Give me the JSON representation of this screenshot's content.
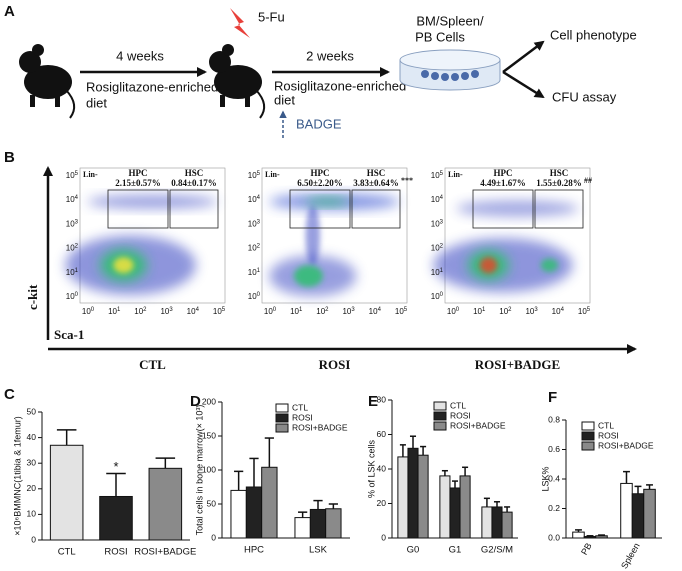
{
  "diagram": {
    "label": "A",
    "treatment": "5-Fu",
    "period_1": "4 weeks",
    "diet_1": [
      "Rosiglitazone-enriched",
      "diet"
    ],
    "period_2": "2 weeks",
    "diet_2": [
      "Rosiglitazone-enriched",
      "diet"
    ],
    "inhibitor": "BADGE",
    "cells": [
      "BM/Spleen/",
      "PB Cells"
    ],
    "outcomes": [
      "Cell phenotype",
      "CFU assay"
    ]
  },
  "flow": {
    "label": "B",
    "y_axis": "c-kit",
    "x_axis": "Sca-1",
    "gate_parent": "Lin-",
    "tick_base": "10",
    "tick_exponents": [
      0,
      1,
      2,
      3,
      4,
      5
    ],
    "plots": [
      {
        "name": "CTL",
        "gates": [
          {
            "name": "HPC",
            "value": "2.15±0.57%"
          },
          {
            "name": "HSC",
            "value": "0.84±0.17%"
          }
        ]
      },
      {
        "name": "ROSI",
        "gates": [
          {
            "name": "HPC",
            "value": "6.50±2.20%"
          },
          {
            "name": "HSC",
            "value": "3.83±0.64%",
            "mark": "***"
          }
        ]
      },
      {
        "name": "ROSI+BADGE",
        "gates": [
          {
            "name": "HPC",
            "value": "4.49±1.67%"
          },
          {
            "name": "HSC",
            "value": "1.55±0.28%",
            "mark": "##"
          }
        ]
      }
    ]
  },
  "chart_data": [
    {
      "type": "bar",
      "label": "C",
      "ylabel": "×10⁶BMMNC(1tibia & 1femur)",
      "categories": [
        "CTL",
        "ROSI",
        "ROSI+BADGE"
      ],
      "values": [
        37,
        17,
        28
      ],
      "errors": [
        6,
        9,
        4
      ],
      "colors": [
        "#e3e3e3",
        "#222222",
        "#8a8a8a"
      ],
      "ylim": [
        0,
        50
      ],
      "yticks": [
        0,
        10,
        20,
        30,
        40,
        50
      ],
      "annotation": "*"
    },
    {
      "type": "bar",
      "label": "D",
      "ylabel": "Total cells in bone marrow(× 10³)",
      "categories": [
        "HPC",
        "LSK"
      ],
      "series": [
        {
          "name": "CTL",
          "color": "#ffffff",
          "values": [
            70,
            30
          ],
          "errors": [
            28,
            8
          ]
        },
        {
          "name": "ROSI",
          "color": "#222222",
          "values": [
            75,
            42
          ],
          "errors": [
            42,
            13
          ]
        },
        {
          "name": "ROSI+BADGE",
          "color": "#8a8a8a",
          "values": [
            104,
            43
          ],
          "errors": [
            43,
            7
          ]
        }
      ],
      "ylim": [
        0,
        200
      ],
      "yticks": [
        0,
        50,
        100,
        150,
        200
      ],
      "legend": "top-right"
    },
    {
      "type": "bar",
      "label": "E",
      "ylabel": "% of LSK cells",
      "categories": [
        "G0",
        "G1",
        "G2/S/M"
      ],
      "series": [
        {
          "name": "CTL",
          "color": "#e3e3e3",
          "values": [
            47,
            36,
            18
          ],
          "errors": [
            7,
            3,
            5
          ]
        },
        {
          "name": "ROSI",
          "color": "#222222",
          "values": [
            52,
            29,
            18
          ],
          "errors": [
            7,
            4,
            3
          ]
        },
        {
          "name": "ROSI+BADGE",
          "color": "#8a8a8a",
          "values": [
            48,
            36,
            15
          ],
          "errors": [
            5,
            5,
            3
          ]
        }
      ],
      "ylim": [
        0,
        80
      ],
      "yticks": [
        0,
        20,
        40,
        60,
        80
      ],
      "legend": "top-right"
    },
    {
      "type": "bar",
      "label": "F",
      "ylabel": "LSK%",
      "categories": [
        "PB",
        "Spleen"
      ],
      "series": [
        {
          "name": "CTL",
          "color": "#ffffff",
          "values": [
            0.04,
            0.37
          ],
          "errors": [
            0.015,
            0.08
          ]
        },
        {
          "name": "ROSI",
          "color": "#222222",
          "values": [
            0.01,
            0.3
          ],
          "errors": [
            0.005,
            0.05
          ]
        },
        {
          "name": "ROSI+BADGE",
          "color": "#8a8a8a",
          "values": [
            0.015,
            0.33
          ],
          "errors": [
            0.005,
            0.03
          ]
        }
      ],
      "ylim": [
        0,
        0.8
      ],
      "yticks": [
        {
          "value": 0,
          "label": "0.0"
        },
        {
          "value": 0.2,
          "label": "0.2"
        },
        {
          "value": 0.4,
          "label": "0.4"
        },
        {
          "value": 0.6,
          "label": "0.6"
        },
        {
          "value": 0.8,
          "label": "0.8"
        }
      ],
      "legend": "top-right",
      "rotate_labels": true
    }
  ]
}
